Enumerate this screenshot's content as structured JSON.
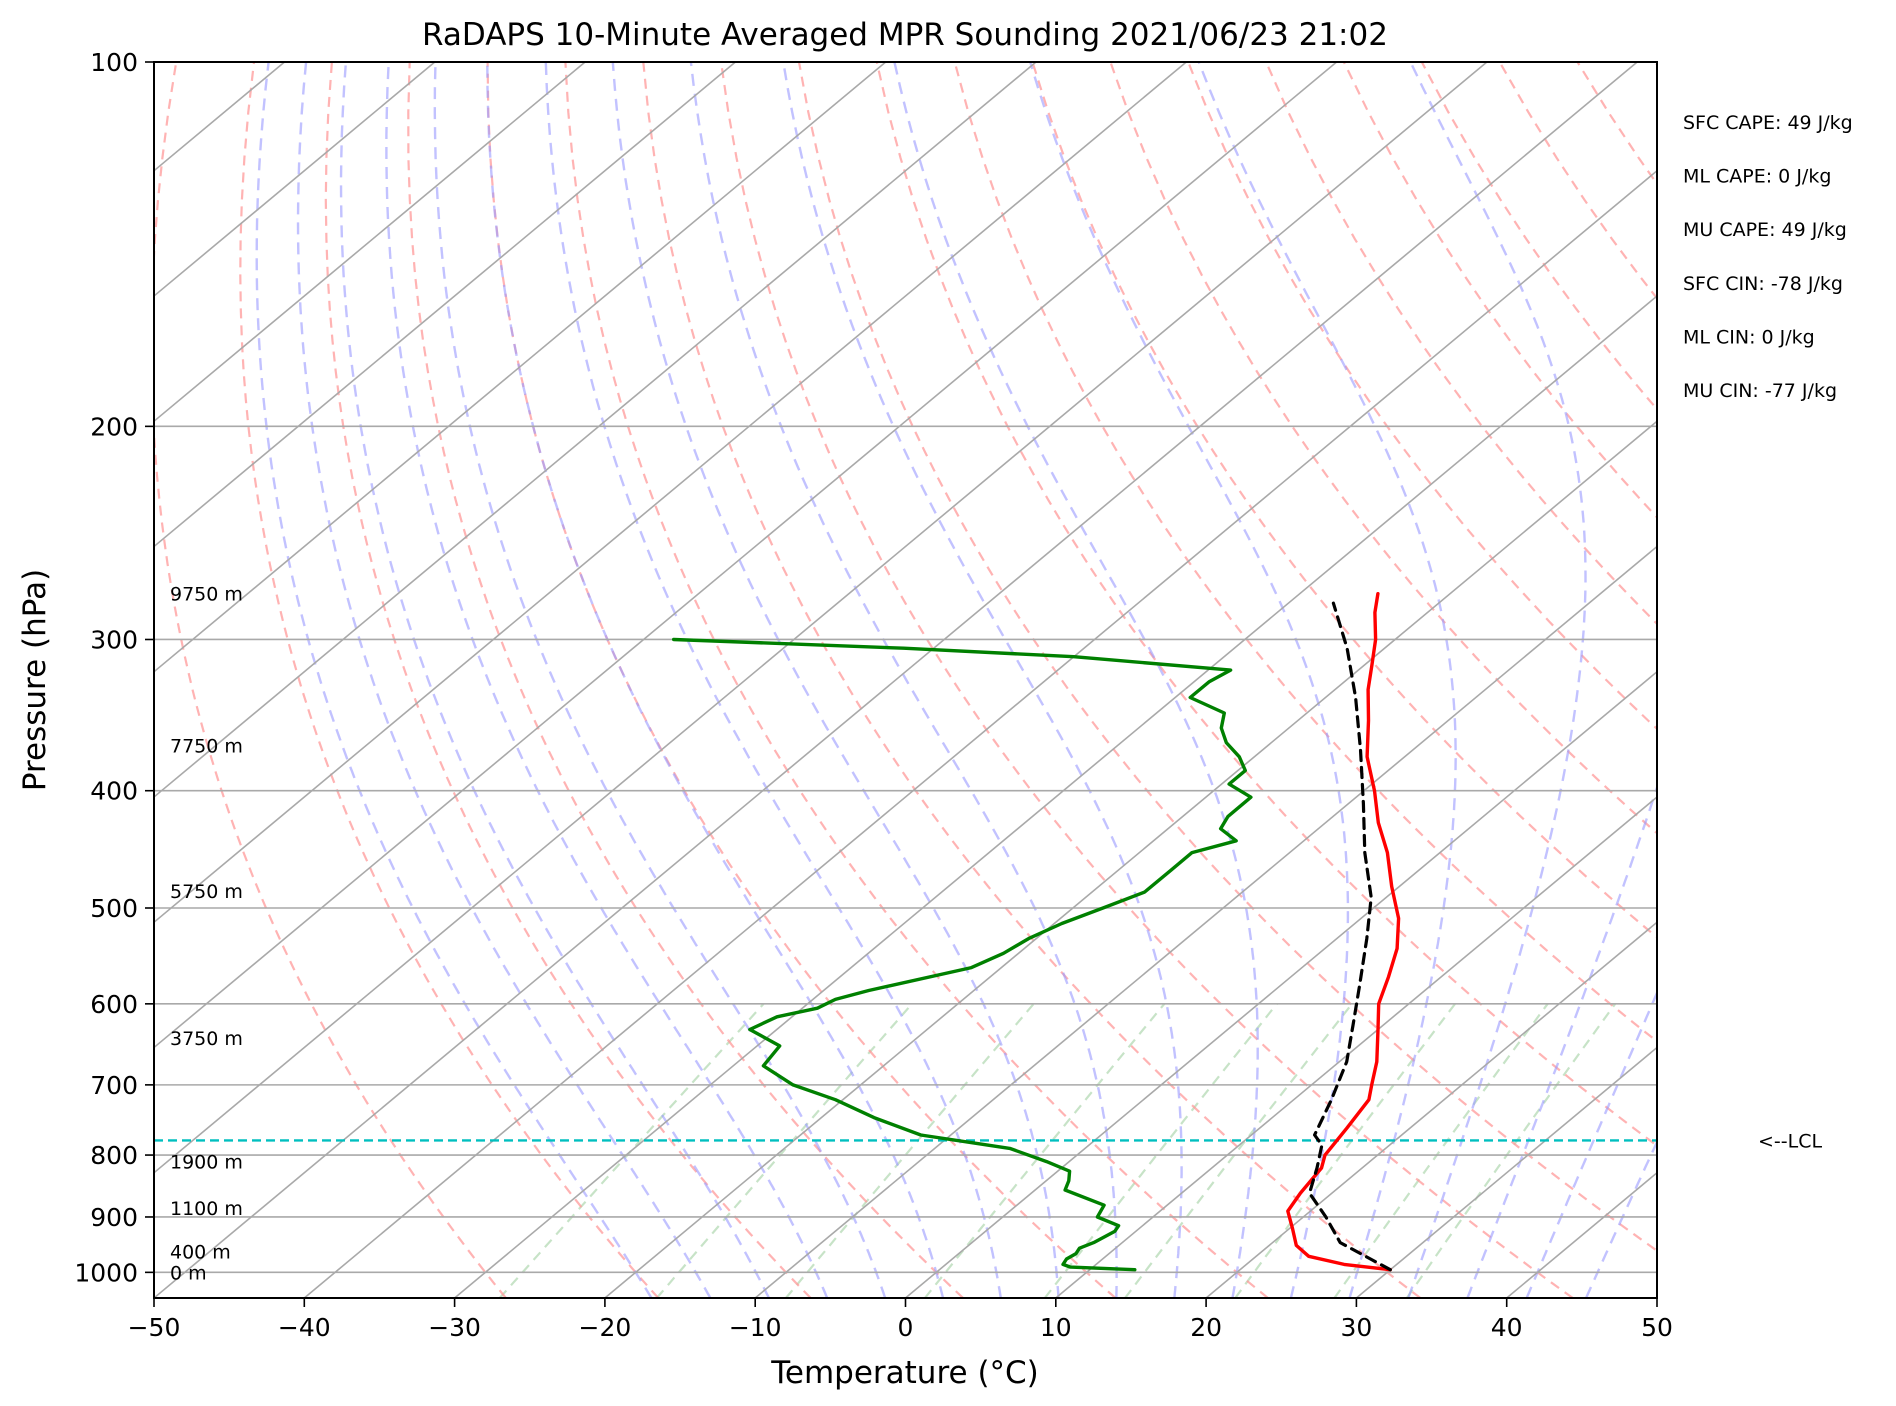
{
  "chart_data": {
    "type": "line",
    "subtype": "skew-t",
    "title": "RaDAPS 10-Minute Averaged MPR Sounding 2021/06/23 21:02",
    "xlabel": "Temperature (°C)",
    "ylabel": "Pressure (hPa)",
    "xlim": [
      -50,
      50
    ],
    "ylim": [
      1050,
      100
    ],
    "y_scale": "log",
    "x_ticks": [
      "−50",
      "−40",
      "−30",
      "−20",
      "−10",
      "0",
      "10",
      "20",
      "30",
      "40",
      "50"
    ],
    "x_tick_values": [
      -50,
      -40,
      -30,
      -20,
      -10,
      0,
      10,
      20,
      30,
      40,
      50
    ],
    "y_ticks": [
      "100",
      "200",
      "300",
      "400",
      "500",
      "600",
      "700",
      "800",
      "900",
      "1000"
    ],
    "y_tick_values": [
      100,
      200,
      300,
      400,
      500,
      600,
      700,
      800,
      900,
      1000
    ],
    "grid": true,
    "colors": {
      "temperature": "#ff0000",
      "dewpoint": "#008000",
      "parcel": "#000000",
      "isotherm": "#a9a9a9",
      "dry_adiabat": "#ff9999",
      "moist_adiabat": "#9999ff",
      "mixing_ratio": "#99cc99",
      "lcl": "#00bfbf"
    },
    "series": [
      {
        "key": "temperature",
        "points": [
          [
            30.0,
            995
          ],
          [
            26.5,
            985
          ],
          [
            23.5,
            970
          ],
          [
            21.8,
            950
          ],
          [
            20.2,
            920
          ],
          [
            18.5,
            890
          ],
          [
            17.9,
            860
          ],
          [
            17.3,
            820
          ],
          [
            16.5,
            800
          ],
          [
            15.8,
            760
          ],
          [
            15.0,
            720
          ],
          [
            14.0,
            700
          ],
          [
            12.5,
            670
          ],
          [
            10.0,
            630
          ],
          [
            8.0,
            600
          ],
          [
            6.5,
            570
          ],
          [
            4.8,
            540
          ],
          [
            2.5,
            510
          ],
          [
            -0.5,
            480
          ],
          [
            -3.5,
            450
          ],
          [
            -6.5,
            425
          ],
          [
            -9.3,
            400
          ],
          [
            -12.5,
            375
          ],
          [
            -15.3,
            350
          ],
          [
            -17.8,
            330
          ],
          [
            -19.5,
            315
          ],
          [
            -21.3,
            300
          ],
          [
            -23.5,
            285
          ],
          [
            -24.8,
            275
          ]
        ]
      },
      {
        "key": "dewpoint",
        "points": [
          [
            13.0,
            995
          ],
          [
            8.5,
            990
          ],
          [
            7.8,
            985
          ],
          [
            7.6,
            975
          ],
          [
            7.8,
            965
          ],
          [
            7.6,
            955
          ],
          [
            8.1,
            945
          ],
          [
            8.6,
            925
          ],
          [
            8.4,
            915
          ],
          [
            6.3,
            900
          ],
          [
            5.8,
            880
          ],
          [
            2.0,
            855
          ],
          [
            1.5,
            840
          ],
          [
            0.8,
            825
          ],
          [
            -1.5,
            810
          ],
          [
            -5.0,
            790
          ],
          [
            -12.0,
            770
          ],
          [
            -16.5,
            745
          ],
          [
            -20.5,
            720
          ],
          [
            -24.5,
            700
          ],
          [
            -28.0,
            675
          ],
          [
            -28.5,
            650
          ],
          [
            -31.8,
            630
          ],
          [
            -31.0,
            615
          ],
          [
            -29.0,
            605
          ],
          [
            -28.5,
            595
          ],
          [
            -27.0,
            585
          ],
          [
            -22.0,
            560
          ],
          [
            -21.0,
            545
          ],
          [
            -20.5,
            530
          ],
          [
            -19.5,
            515
          ],
          [
            -18.0,
            500
          ],
          [
            -16.5,
            485
          ],
          [
            -16.5,
            465
          ],
          [
            -16.5,
            450
          ],
          [
            -14.5,
            440
          ],
          [
            -16.5,
            430
          ],
          [
            -17.0,
            420
          ],
          [
            -17.0,
            405
          ],
          [
            -19.5,
            395
          ],
          [
            -19.5,
            385
          ],
          [
            -21.0,
            375
          ],
          [
            -23.0,
            365
          ],
          [
            -24.5,
            355
          ],
          [
            -25.5,
            345
          ],
          [
            -29.0,
            335
          ],
          [
            -29.0,
            325
          ],
          [
            -28.5,
            318
          ],
          [
            -40.0,
            310
          ],
          [
            -52.0,
            305
          ],
          [
            -68.0,
            300
          ]
        ]
      },
      {
        "key": "parcel",
        "points": [
          [
            30.0,
            995
          ],
          [
            24.5,
            945
          ],
          [
            21.5,
            900
          ],
          [
            18.5,
            860
          ],
          [
            17.0,
            820
          ],
          [
            15.5,
            785
          ],
          [
            14.2,
            770
          ],
          [
            12.5,
            720
          ],
          [
            10.5,
            670
          ],
          [
            8.0,
            625
          ],
          [
            5.3,
            580
          ],
          [
            2.0,
            530
          ],
          [
            -1.0,
            490
          ],
          [
            -5.0,
            450
          ],
          [
            -9.0,
            410
          ],
          [
            -13.5,
            370
          ],
          [
            -18.0,
            335
          ],
          [
            -22.5,
            305
          ],
          [
            -27.0,
            280
          ]
        ]
      }
    ],
    "lcl_pressure": 778,
    "lcl_label": "<--LCL",
    "height_labels": [
      {
        "text": "9750 m",
        "pressure": 275
      },
      {
        "text": "7750 m",
        "pressure": 367
      },
      {
        "text": "5750 m",
        "pressure": 484
      },
      {
        "text": "3750 m",
        "pressure": 640
      },
      {
        "text": "1900 m",
        "pressure": 810
      },
      {
        "text": "1100 m",
        "pressure": 885
      },
      {
        "text": "400 m",
        "pressure": 961
      },
      {
        "text": "0 m",
        "pressure": 1000
      }
    ],
    "annotations": [
      "SFC CAPE: 49 J/kg",
      "ML CAPE: 0 J/kg",
      "MU CAPE: 49 J/kg",
      "SFC CIN: -78 J/kg",
      "ML CIN: 0 J/kg",
      "MU CIN: -77 J/kg"
    ]
  }
}
